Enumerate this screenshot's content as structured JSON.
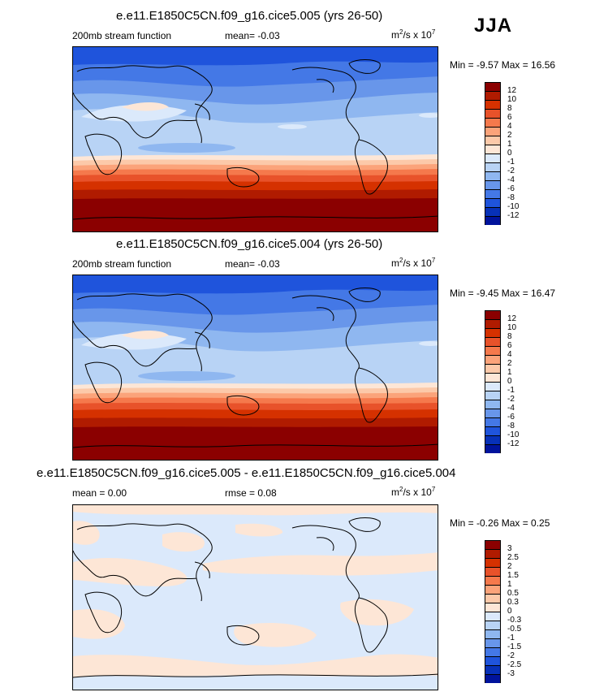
{
  "season": "JJA",
  "panels": [
    {
      "title": "e.e11.E1850C5CN.f09_g16.cice5.005 (yrs 26-50)",
      "left_label": "200mb stream function",
      "center_label": "mean=  -0.03",
      "units_main": "m",
      "units_sup1": "2",
      "units_mid": "/s x 10",
      "units_sup2": "7",
      "minmax": "Min =  -9.57 Max =  16.56",
      "levels": [
        "12",
        "10",
        "8",
        "6",
        "4",
        "2",
        "1",
        "0",
        "-1",
        "-2",
        "-4",
        "-6",
        "-8",
        "-10",
        "-12"
      ],
      "colors": [
        "#8b0000",
        "#b01b00",
        "#d53100",
        "#e8522a",
        "#f5794c",
        "#fba37a",
        "#fcc9a9",
        "#fde6d6",
        "#dbe9fb",
        "#b8d3f5",
        "#8fb7f0",
        "#6896ea",
        "#4478e6",
        "#1f54dc",
        "#0731b8",
        "#00139c"
      ]
    },
    {
      "title": "e.e11.E1850C5CN.f09_g16.cice5.004 (yrs 26-50)",
      "left_label": "200mb stream function",
      "center_label": "mean=  -0.03",
      "units_main": "m",
      "units_sup1": "2",
      "units_mid": "/s x 10",
      "units_sup2": "7",
      "minmax": "Min =  -9.45 Max =  16.47",
      "levels": [
        "12",
        "10",
        "8",
        "6",
        "4",
        "2",
        "1",
        "0",
        "-1",
        "-2",
        "-4",
        "-6",
        "-8",
        "-10",
        "-12"
      ],
      "colors": [
        "#8b0000",
        "#b01b00",
        "#d53100",
        "#e8522a",
        "#f5794c",
        "#fba37a",
        "#fcc9a9",
        "#fde6d6",
        "#dbe9fb",
        "#b8d3f5",
        "#8fb7f0",
        "#6896ea",
        "#4478e6",
        "#1f54dc",
        "#0731b8",
        "#00139c"
      ]
    },
    {
      "title": "e.e11.E1850C5CN.f09_g16.cice5.005 - e.e11.E1850C5CN.f09_g16.cice5.004",
      "left_label": "mean =   0.00",
      "center_label": "rmse =   0.08",
      "units_main": "m",
      "units_sup1": "2",
      "units_mid": "/s x 10",
      "units_sup2": "7",
      "minmax": "Min =  -0.26 Max =   0.25",
      "levels": [
        "3",
        "2.5",
        "2",
        "1.5",
        "1",
        "0.5",
        "0.3",
        "0",
        "-0.3",
        "-0.5",
        "-1",
        "-1.5",
        "-2",
        "-2.5",
        "-3"
      ],
      "colors": [
        "#8b0000",
        "#b01b00",
        "#d53100",
        "#e8522a",
        "#f5794c",
        "#fba37a",
        "#fcc9a9",
        "#fde6d6",
        "#dbe9fb",
        "#b8d3f5",
        "#8fb7f0",
        "#6896ea",
        "#4478e6",
        "#1f54dc",
        "#0731b8",
        "#00139c"
      ]
    }
  ],
  "map_colors": {
    "c12": "#8b0000",
    "c10": "#b01b00",
    "c8": "#d53100",
    "c6": "#e8522a",
    "c4": "#f5794c",
    "c2": "#fba37a",
    "c1": "#fcc9a9",
    "c0": "#fde6d6",
    "cm1": "#dbe9fb",
    "cm2": "#b8d3f5",
    "cm4": "#8fb7f0",
    "cm6": "#6896ea",
    "cm8": "#4478e6",
    "cm10": "#1f54dc"
  }
}
